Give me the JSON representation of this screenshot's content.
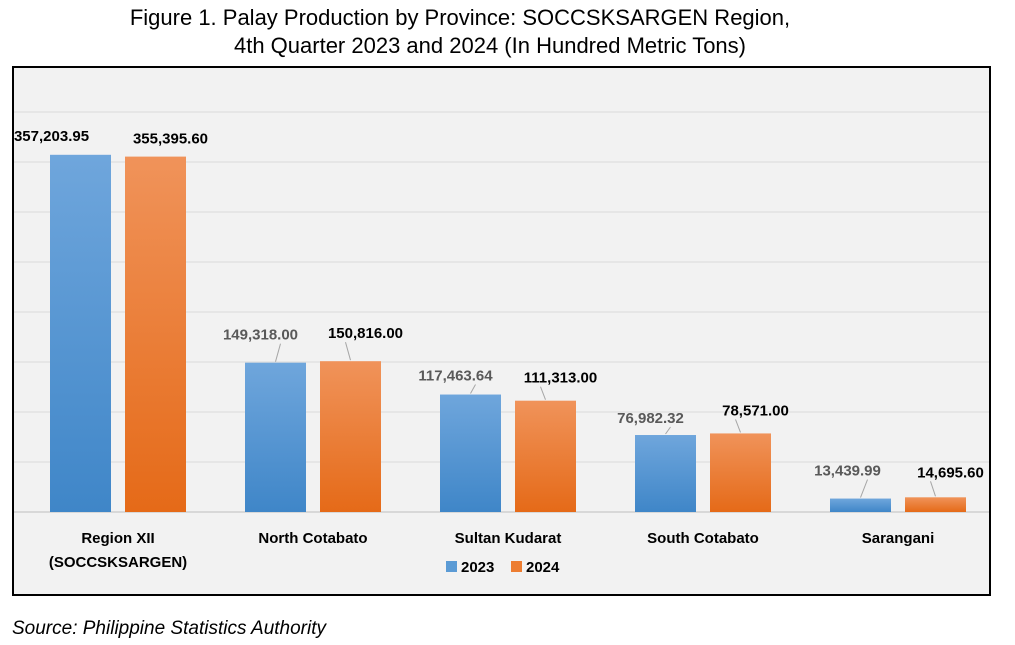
{
  "title_line1": "Figure 1. Palay Production by Province: SOCCSKSARGEN Region,",
  "title_line2": "4th Quarter 2023 and 2024 (In Hundred Metric Tons)",
  "source": "Source: Philippine Statistics Authority",
  "chart_data": {
    "type": "bar",
    "title": "Figure 1. Palay Production by Province: SOCCSKSARGEN Region, 4th Quarter 2023 and 2024 (In Hundred Metric Tons)",
    "categories": [
      "Region XII\n(SOCCSKSARGEN)",
      "North Cotabato",
      "Sultan Kudarat",
      "South Cotabato",
      "Sarangani"
    ],
    "series": [
      {
        "name": "2023",
        "values": [
          357203.95,
          149318.0,
          117463.64,
          76982.32,
          13439.99
        ],
        "labels": [
          "357,203.95",
          "149,318.00",
          "117,463.64",
          "76,982.32",
          "13,439.99"
        ],
        "color": "#5b9bd5"
      },
      {
        "name": "2024",
        "values": [
          355395.6,
          150816.0,
          111313.0,
          78571.0,
          14695.6
        ],
        "labels": [
          "355,395.60",
          "150,816.00",
          "111,313.00",
          "78,571.00",
          "14,695.60"
        ],
        "color": "#ed7d31"
      }
    ],
    "ylim": [
      0,
      400000
    ],
    "grid": true,
    "legend": "bottom-center",
    "xlabel": "",
    "ylabel": ""
  }
}
